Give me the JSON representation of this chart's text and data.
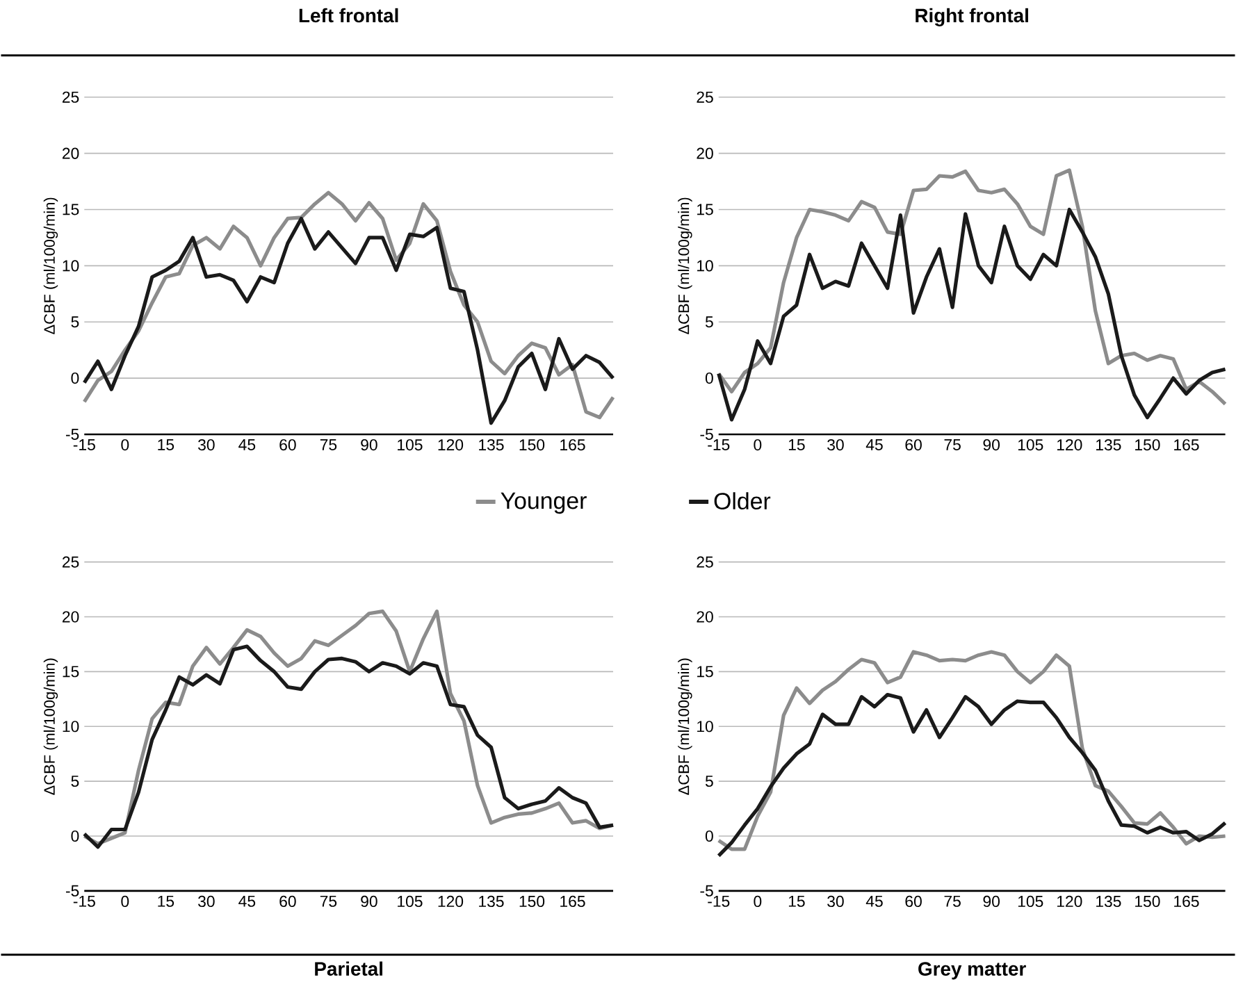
{
  "chart_data": [
    {
      "type": "line",
      "title": "Left frontal",
      "ylabel": "ΔCBF (ml/100g/min)",
      "xlim": [
        -15,
        180
      ],
      "ylim": [
        -5,
        25
      ],
      "xticks": [
        -15,
        0,
        15,
        30,
        45,
        60,
        75,
        90,
        105,
        120,
        135,
        150,
        165
      ],
      "yticks": [
        -5,
        0,
        5,
        10,
        15,
        20,
        25
      ],
      "grid": "y",
      "legend": "bottom",
      "x": [
        -15,
        -10,
        -5,
        0,
        5,
        10,
        15,
        20,
        25,
        30,
        35,
        40,
        45,
        50,
        55,
        60,
        65,
        70,
        75,
        80,
        85,
        90,
        95,
        100,
        105,
        110,
        115,
        120,
        125,
        130,
        135,
        140,
        145,
        150,
        155,
        160,
        165,
        170,
        175,
        180
      ],
      "series": [
        {
          "name": "Younger",
          "color": "#8c8c8c",
          "values": [
            -2.1,
            -0.2,
            0.6,
            2.5,
            4.2,
            6.7,
            9,
            9.3,
            11.8,
            12.5,
            11.5,
            13.5,
            12.5,
            10,
            12.5,
            14.2,
            14.3,
            15.5,
            16.5,
            15.5,
            14,
            15.6,
            14.2,
            10.5,
            12,
            15.5,
            14,
            9.5,
            6.5,
            5,
            1.5,
            0.4,
            2,
            3.1,
            2.7,
            0.3,
            1.2,
            -3,
            -3.5,
            -1.7
          ]
        },
        {
          "name": "Older",
          "color": "#1a1a1a",
          "values": [
            -0.4,
            1.5,
            -1,
            2,
            4.6,
            9,
            9.6,
            10.4,
            12.5,
            9,
            9.2,
            8.7,
            6.8,
            9,
            8.5,
            12,
            14.2,
            11.5,
            13,
            11.6,
            10.2,
            12.5,
            12.5,
            9.6,
            12.8,
            12.6,
            13.4,
            8,
            7.7,
            2.5,
            -4,
            -2,
            1,
            2.2,
            -1,
            3.5,
            0.8,
            2,
            1.4,
            0
          ]
        }
      ]
    },
    {
      "type": "line",
      "title": "Right frontal",
      "ylabel": "ΔCBF (ml/100g/min)",
      "xlim": [
        -15,
        180
      ],
      "ylim": [
        -5,
        25
      ],
      "xticks": [
        -15,
        0,
        15,
        30,
        45,
        60,
        75,
        90,
        105,
        120,
        135,
        150,
        165
      ],
      "yticks": [
        -5,
        0,
        5,
        10,
        15,
        20,
        25
      ],
      "grid": "y",
      "x": [
        -15,
        -10,
        -5,
        0,
        5,
        10,
        15,
        20,
        25,
        30,
        35,
        40,
        45,
        50,
        55,
        60,
        65,
        70,
        75,
        80,
        85,
        90,
        95,
        100,
        105,
        110,
        115,
        120,
        125,
        130,
        135,
        140,
        145,
        150,
        155,
        160,
        165,
        170,
        175,
        180
      ],
      "series": [
        {
          "color": "#8c8c8c",
          "values": [
            0.4,
            -1.2,
            0.5,
            1.3,
            2.7,
            8.5,
            12.5,
            15,
            14.8,
            14.5,
            14,
            15.7,
            15.2,
            13,
            12.8,
            16.7,
            16.8,
            18,
            17.9,
            18.4,
            16.7,
            16.5,
            16.8,
            15.5,
            13.5,
            12.8,
            18,
            18.5,
            13.5,
            6,
            1.3,
            2,
            2.2,
            1.6,
            2,
            1.7,
            -1,
            -0.3,
            -1.2,
            -2.3
          ]
        },
        {
          "color": "#1a1a1a",
          "values": [
            0.4,
            -3.7,
            -1,
            3.3,
            1.3,
            5.5,
            6.5,
            11,
            8,
            8.6,
            8.2,
            12,
            10,
            8,
            14.5,
            5.8,
            9,
            11.5,
            6.3,
            14.6,
            10,
            8.5,
            13.5,
            10,
            8.8,
            11,
            10,
            15,
            13,
            10.8,
            7.5,
            2,
            -1.5,
            -3.5,
            -1.8,
            0,
            -1.4,
            -0.2,
            0.5,
            0.8
          ]
        }
      ]
    },
    {
      "type": "line",
      "title": "Parietal",
      "ylabel": "ΔCBF (ml/100g/min)",
      "xlim": [
        -15,
        180
      ],
      "ylim": [
        -5,
        25
      ],
      "xticks": [
        -15,
        0,
        15,
        30,
        45,
        60,
        75,
        90,
        105,
        120,
        135,
        150,
        165
      ],
      "yticks": [
        -5,
        0,
        5,
        10,
        15,
        20,
        25
      ],
      "grid": "y",
      "x": [
        -15,
        -10,
        -5,
        0,
        5,
        10,
        15,
        20,
        25,
        30,
        35,
        40,
        45,
        50,
        55,
        60,
        65,
        70,
        75,
        80,
        85,
        90,
        95,
        100,
        105,
        110,
        115,
        120,
        125,
        130,
        135,
        140,
        145,
        150,
        155,
        160,
        165,
        170,
        175,
        180
      ],
      "series": [
        {
          "color": "#8c8c8c",
          "values": [
            0,
            -0.7,
            -0.2,
            0.3,
            6,
            10.7,
            12.2,
            12,
            15.5,
            17.2,
            15.7,
            17.2,
            18.8,
            18.2,
            16.7,
            15.5,
            16.2,
            17.8,
            17.4,
            18.3,
            19.2,
            20.3,
            20.5,
            18.7,
            15,
            18,
            20.5,
            13,
            10.5,
            4.6,
            1.2,
            1.7,
            2,
            2.1,
            2.5,
            3,
            1.2,
            1.4,
            0.7,
            1
          ]
        },
        {
          "color": "#1a1a1a",
          "values": [
            0.2,
            -1,
            0.6,
            0.6,
            4,
            8.8,
            11.5,
            14.5,
            13.8,
            14.7,
            13.9,
            17,
            17.3,
            16,
            15,
            13.6,
            13.4,
            15,
            16.1,
            16.2,
            15.9,
            15,
            15.8,
            15.5,
            14.8,
            15.8,
            15.5,
            12,
            11.8,
            9.2,
            8.1,
            3.5,
            2.5,
            2.9,
            3.2,
            4.4,
            3.5,
            3,
            0.8,
            1
          ]
        }
      ]
    },
    {
      "type": "line",
      "title": "Grey matter",
      "ylabel": "ΔCBF (ml/100g/min)",
      "xlim": [
        -15,
        180
      ],
      "ylim": [
        -5,
        25
      ],
      "xticks": [
        -15,
        0,
        15,
        30,
        45,
        60,
        75,
        90,
        105,
        120,
        135,
        150,
        165
      ],
      "yticks": [
        -5,
        0,
        5,
        10,
        15,
        20,
        25
      ],
      "grid": "y",
      "x": [
        -15,
        -10,
        -5,
        0,
        5,
        10,
        15,
        20,
        25,
        30,
        35,
        40,
        45,
        50,
        55,
        60,
        65,
        70,
        75,
        80,
        85,
        90,
        95,
        100,
        105,
        110,
        115,
        120,
        125,
        130,
        135,
        140,
        145,
        150,
        155,
        160,
        165,
        170,
        175,
        180
      ],
      "series": [
        {
          "color": "#8c8c8c",
          "values": [
            -0.4,
            -1.2,
            -1.2,
            1.8,
            4,
            11,
            13.5,
            12.1,
            13.3,
            14.1,
            15.2,
            16.1,
            15.8,
            14,
            14.5,
            16.8,
            16.5,
            16,
            16.1,
            16,
            16.5,
            16.8,
            16.5,
            15,
            14,
            15,
            16.5,
            15.5,
            8,
            4.6,
            4.1,
            2.7,
            1.2,
            1.1,
            2.1,
            0.8,
            -0.7,
            0,
            -0.1,
            0
          ]
        },
        {
          "color": "#1a1a1a",
          "values": [
            -1.8,
            -0.6,
            1,
            2.5,
            4.5,
            6.2,
            7.5,
            8.4,
            11.1,
            10.2,
            10.2,
            12.7,
            11.8,
            12.9,
            12.6,
            9.5,
            11.5,
            9,
            10.8,
            12.7,
            11.8,
            10.2,
            11.5,
            12.3,
            12.2,
            12.2,
            10.8,
            9,
            7.6,
            6,
            3.2,
            1,
            0.9,
            0.3,
            0.8,
            0.3,
            0.4,
            -0.4,
            0.2,
            1.2
          ]
        }
      ]
    }
  ]
}
